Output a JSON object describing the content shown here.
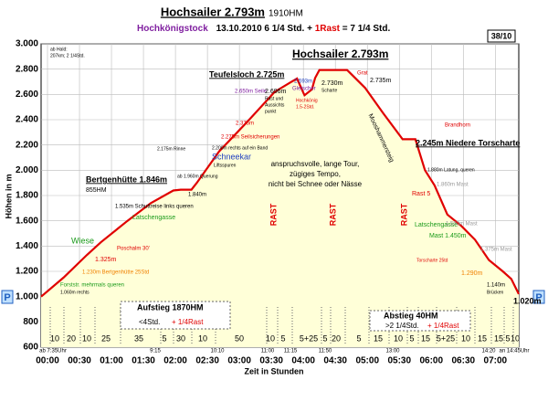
{
  "header": {
    "title": "Hochsailer 2.793m",
    "gain": "1910HM",
    "group": "Hochkönigstock",
    "date_time": "13.10.2010   6 1/4 Std. +",
    "rest": "1Rast",
    "total": "= 7 1/4 Std.",
    "tour_no": "38/10",
    "parking": "P"
  },
  "chart_data": {
    "type": "area",
    "color": "#e00000",
    "fill": "#ffffd8",
    "x_label": "Zeit in  Stunden",
    "y_label": "Höhen in m",
    "x": [
      -6,
      15,
      37,
      50,
      75,
      97,
      118,
      125,
      135,
      140,
      161,
      187,
      213,
      228,
      234,
      241,
      248,
      251,
      255,
      281,
      288,
      298,
      315,
      333,
      345,
      354,
      363,
      375,
      388,
      401,
      414,
      427,
      435,
      442
    ],
    "values": [
      1000,
      1150,
      1330,
      1430,
      1600,
      1740,
      1840,
      1846,
      1846,
      1900,
      2150,
      2380,
      2620,
      2696,
      2725,
      2593,
      2640,
      2730,
      2793,
      2793,
      2735,
      2650,
      2450,
      2245,
      2245,
      2000,
      1880,
      1650,
      1560,
      1450,
      1290,
      1200,
      1140,
      1020
    ],
    "xlim": [
      -6,
      442
    ],
    "ylim": [
      600,
      3000
    ],
    "xticks": [
      {
        "value": 0,
        "label": "00:00"
      },
      {
        "value": 30,
        "label": "00:30"
      },
      {
        "value": 60,
        "label": "01:00"
      },
      {
        "value": 90,
        "label": "01:30"
      },
      {
        "value": 120,
        "label": "02:00"
      },
      {
        "value": 150,
        "label": "02:30"
      },
      {
        "value": 180,
        "label": "03:00"
      },
      {
        "value": 210,
        "label": "03:30"
      },
      {
        "value": 240,
        "label": "04:00"
      },
      {
        "value": 270,
        "label": "04:30"
      },
      {
        "value": 300,
        "label": "05:00"
      },
      {
        "value": 330,
        "label": "05:30"
      },
      {
        "value": 360,
        "label": "06:00"
      },
      {
        "value": 390,
        "label": "06:30"
      },
      {
        "value": 420,
        "label": "07:00"
      }
    ],
    "yticks": [
      600,
      800,
      {
        "value": 1000,
        "label": "1.000"
      },
      {
        "value": 1200,
        "label": "1.200"
      },
      {
        "value": 1400,
        "label": "1.400"
      },
      {
        "value": 1600,
        "label": "1.600"
      },
      {
        "value": 1800,
        "label": "1.800"
      },
      {
        "value": 2000,
        "label": "2.000"
      },
      {
        "value": 2200,
        "label": "2.200"
      },
      {
        "value": 2400,
        "label": "2.400"
      },
      {
        "value": 2600,
        "label": "2.600"
      },
      {
        "value": 2800,
        "label": "2.800"
      },
      {
        "value": 3000,
        "label": "3.000"
      }
    ],
    "grid": true,
    "annotations": [
      {
        "text": "ab Hald:",
        "color": "#000"
      },
      {
        "text": "207km; 2 1/4Std.",
        "color": "#000"
      },
      {
        "text": "Teufelsloch 2.725m",
        "color": "#000"
      },
      {
        "text": "Hochsailer 2.793m",
        "color": "#000"
      },
      {
        "text": "2.735m",
        "color": "#000"
      },
      {
        "text": "2.245m Niedere Torscharte",
        "color": "#000"
      },
      {
        "text": "Bertgenhütte 1.846m",
        "color": "#000"
      },
      {
        "text": "855HM",
        "color": "#000"
      },
      {
        "text": "1.535m Schuttreise links queren",
        "color": "#000"
      },
      {
        "text": "Latschengasse",
        "color": "#1a9a1a"
      },
      {
        "text": "Wiese",
        "color": "#1a9a1a"
      },
      {
        "text": "1.325m",
        "color": "#e00000"
      },
      {
        "text": "Poschalm 30'",
        "color": "#e00000"
      },
      {
        "text": "1.230m Bertgenhütte 25Std",
        "color": "#f08000"
      },
      {
        "text": "Forststr. mehrmals queren",
        "color": "#1a9a1a"
      },
      {
        "text": "1.060m rechts",
        "color": "#000"
      },
      {
        "text": "Schneekar",
        "color": "#2040c0"
      },
      {
        "text": "Liftsspuren",
        "color": "#000"
      },
      {
        "text": "ab 1.960m Querung",
        "color": "#000"
      },
      {
        "text": "1.840m",
        "color": "#000"
      },
      {
        "text": "2.175m Rinne",
        "color": "#000"
      },
      {
        "text": "2.200m rechts auf ein Band",
        "color": "#000"
      },
      {
        "text": "2.275m Seilsicherungen",
        "color": "#e00000"
      },
      {
        "text": "2.375m",
        "color": "#e00000"
      },
      {
        "text": "2.650m Seile",
        "color": "#8020a0"
      },
      {
        "text": "2.696m",
        "color": "#000"
      },
      {
        "text": "Rast und",
        "color": "#000"
      },
      {
        "text": "Aussichts",
        "color": "#000"
      },
      {
        "text": "punkt",
        "color": "#000"
      },
      {
        "text": "2.593m",
        "color": "#2040c0"
      },
      {
        "text": "Gletscher",
        "color": "#8020a0"
      },
      {
        "text": "Hochkönig",
        "color": "#e00000"
      },
      {
        "text": "1.5-2Std.",
        "color": "#e00000"
      },
      {
        "text": "2.730m",
        "color": "#000"
      },
      {
        "text": "Scharte",
        "color": "#000"
      },
      {
        "text": "Grat",
        "color": "#e00000"
      },
      {
        "text": "Mooshammersteig",
        "color": "#000"
      },
      {
        "text": "anspruchsvolle, lange Tour,",
        "color": "#000"
      },
      {
        "text": "zügiges Tempo,",
        "color": "#000"
      },
      {
        "text": "nicht bei Schnee oder Nässe",
        "color": "#000"
      },
      {
        "text": "Brandhorn",
        "color": "#e00000"
      },
      {
        "text": "1.880m Latung, queren",
        "color": "#000"
      },
      {
        "text": "1.860m Mast",
        "color": "#999"
      },
      {
        "text": "Rast 5",
        "color": "#e00000"
      },
      {
        "text": "Latschengasse",
        "color": "#1a9a1a"
      },
      {
        "text": "1.550m Mast",
        "color": "#999"
      },
      {
        "text": "Mast 1.450m",
        "color": "#1a9a1a"
      },
      {
        "text": "1.375m Mast",
        "color": "#999"
      },
      {
        "text": "Torscharte 25td",
        "color": "#e00000"
      },
      {
        "text": "1.290m",
        "color": "#f08000"
      },
      {
        "text": "1.140m",
        "color": "#000"
      },
      {
        "text": "Brücken",
        "color": "#000"
      },
      {
        "text": "1.020m",
        "color": "#000"
      },
      {
        "text": "RAST",
        "color": "#e00000"
      },
      {
        "text": "RAST",
        "color": "#e00000"
      },
      {
        "text": "RAST",
        "color": "#e00000"
      },
      {
        "text": "Aufstieg 1870HM",
        "color": "#000"
      },
      {
        "text": "<4Std.",
        "color": "#000"
      },
      {
        "text": "+ 1/4Rast",
        "color": "#e00000"
      },
      {
        "text": "Abstieg 40HM",
        "color": "#000"
      },
      {
        "text": ">2 1/4Std.",
        "color": "#000"
      },
      {
        "text": "+ 1/4Rast",
        "color": "#e00000"
      }
    ],
    "segment_minutes": [
      "10",
      "20",
      "10",
      "25",
      "35",
      "5",
      "30",
      "10",
      "50",
      "10",
      "5",
      "5+25",
      "5",
      "20",
      "5",
      "15",
      "10",
      "5",
      "15",
      "5+25",
      "10",
      "15",
      "15",
      "5",
      "10"
    ],
    "clock_times": [
      "ab 7:35Uhr",
      "9:15",
      "10:10",
      "11:00",
      "11:15",
      "11:50",
      "13:00",
      "14:20",
      "an 14:45Uhr"
    ]
  }
}
